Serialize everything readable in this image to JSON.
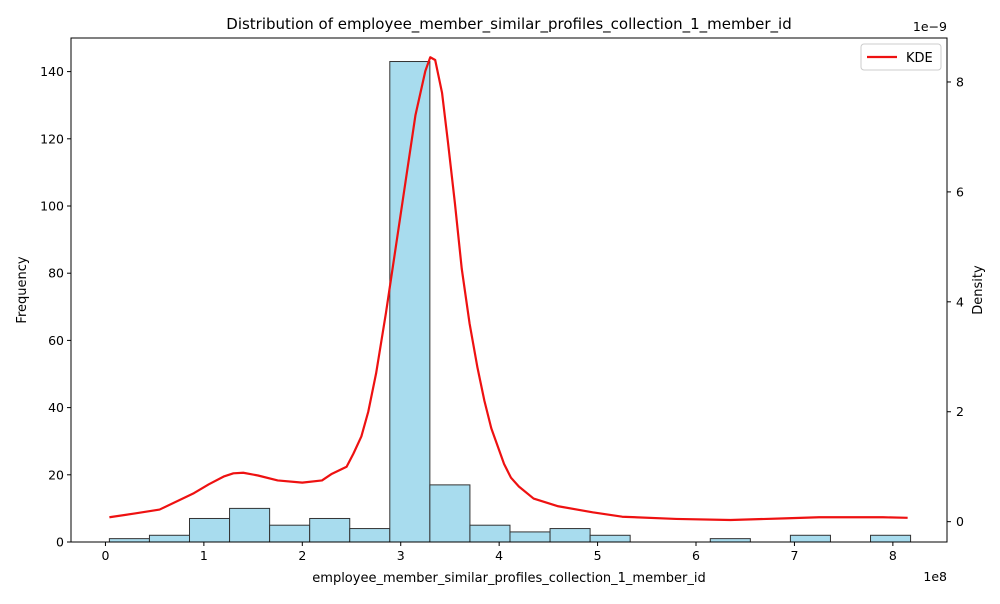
{
  "chart_data": {
    "type": "bar",
    "title": "Distribution of employee_member_similar_profiles_collection_1_member_id",
    "xlabel": "employee_member_similar_profiles_collection_1_member_id",
    "ylabel": "Frequency",
    "y2label": "Density",
    "x_scale_label": "1e8",
    "y2_scale_label": "1e−9",
    "xlim": [
      -0.35,
      8.55
    ],
    "ylim": [
      0,
      150
    ],
    "y2lim": [
      -0.37,
      8.8
    ],
    "x_ticks": [
      0,
      1,
      2,
      3,
      4,
      5,
      6,
      7,
      8
    ],
    "y_ticks": [
      0,
      20,
      40,
      60,
      80,
      100,
      120,
      140
    ],
    "y2_ticks": [
      0,
      2,
      4,
      6,
      8
    ],
    "grid": false,
    "legend_position": "top-right",
    "bar_color": "#a8dcee",
    "kde_color": "#ee1111",
    "histogram": {
      "name": "Frequency",
      "bin_edges": [
        0.04,
        0.447,
        0.854,
        1.261,
        1.668,
        2.075,
        2.482,
        2.889,
        3.296,
        3.703,
        4.11,
        4.517,
        4.924,
        5.331,
        5.738,
        6.145,
        6.552,
        6.959,
        7.366,
        7.773,
        8.18
      ],
      "counts": [
        1,
        2,
        7,
        10,
        5,
        7,
        4,
        143,
        17,
        5,
        3,
        4,
        2,
        0,
        0,
        1,
        0,
        2,
        0,
        2
      ]
    },
    "series": [
      {
        "name": "KDE",
        "x": [
          0.04,
          0.3,
          0.55,
          0.9,
          1.05,
          1.2,
          1.3,
          1.4,
          1.55,
          1.75,
          2.0,
          2.2,
          2.3,
          2.45,
          2.52,
          2.6,
          2.67,
          2.75,
          2.85,
          2.95,
          3.05,
          3.15,
          3.25,
          3.3,
          3.35,
          3.42,
          3.48,
          3.55,
          3.62,
          3.7,
          3.78,
          3.85,
          3.92,
          4.0,
          4.05,
          4.12,
          4.2,
          4.35,
          4.6,
          4.95,
          5.25,
          5.8,
          6.35,
          6.9,
          7.25,
          7.9,
          8.15
        ],
        "y": [
          0.08,
          0.15,
          0.22,
          0.52,
          0.68,
          0.82,
          0.88,
          0.89,
          0.84,
          0.75,
          0.71,
          0.75,
          0.87,
          1.0,
          1.24,
          1.55,
          2.0,
          2.7,
          3.8,
          5.0,
          6.2,
          7.4,
          8.2,
          8.45,
          8.4,
          7.8,
          6.9,
          5.8,
          4.6,
          3.6,
          2.8,
          2.2,
          1.7,
          1.3,
          1.05,
          0.8,
          0.64,
          0.42,
          0.28,
          0.17,
          0.09,
          0.05,
          0.03,
          0.06,
          0.08,
          0.08,
          0.07
        ]
      }
    ]
  }
}
